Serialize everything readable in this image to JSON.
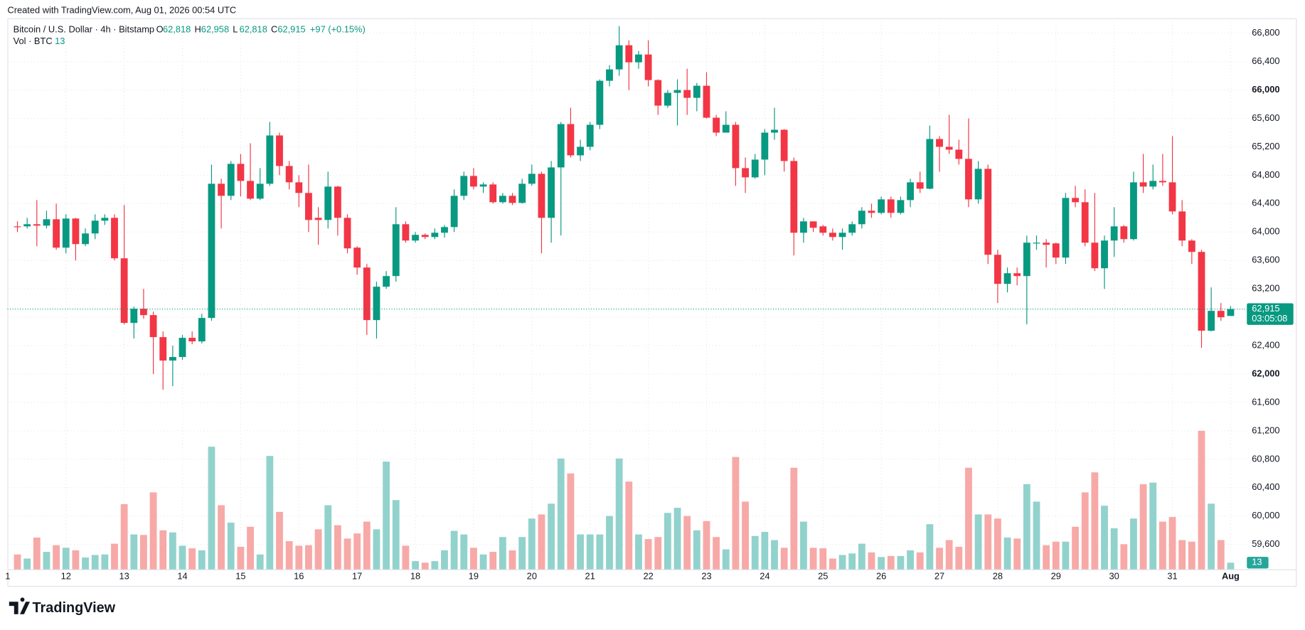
{
  "credit": "Created with TradingView.com, Aug 01, 2026 00:54 UTC",
  "logo_text": "TradingView",
  "chart_data": {
    "type": "candlestick",
    "title": "Bitcoin / U.S. Dollar · 4h · Bitstamp",
    "header": [
      {
        "key": "O",
        "text": "62,818"
      },
      {
        "key": "H",
        "text": "62,958"
      },
      {
        "key": "L",
        "text": "62,818"
      },
      {
        "key": "C",
        "text": "62,915"
      }
    ],
    "change": "+97 (+0.15%)",
    "volume_name": "Vol · BTC",
    "up_color": "#089981",
    "down_color": "#f23645",
    "volume_up_color": "#92d2cc",
    "volume_down_color": "#f7a9a7",
    "open": [
      64080,
      64080,
      64110,
      64090,
      64180,
      63780,
      64190,
      63830,
      63980,
      64160,
      64200,
      63630,
      62720,
      62920,
      62830,
      62520,
      62190,
      62240,
      62510,
      62460,
      62790,
      64680,
      64510,
      64960,
      64720,
      64470,
      64680,
      65360,
      64930,
      64700,
      64550,
      64200,
      64170,
      64640,
      64200,
      63780,
      63500,
      62760,
      63230,
      63380,
      64110,
      63880,
      63960,
      63930,
      63990,
      64070,
      64510,
      64790,
      64640,
      64670,
      64420,
      64510,
      64410,
      64680,
      64820,
      64200,
      64910,
      65520,
      65080,
      65200,
      65510,
      66130,
      66290,
      66630,
      66390,
      66500,
      66140,
      65780,
      65960,
      66000,
      65890,
      66060,
      65610,
      65400,
      65510,
      64900,
      64770,
      65020,
      65400,
      65440,
      65000,
      63990,
      64150,
      64080,
      63990,
      63930,
      63990,
      64110,
      64300,
      64270,
      64460,
      64270,
      64450,
      64700,
      64610,
      65310,
      65200,
      65160,
      65030,
      64460,
      64890,
      63680,
      63270,
      63420,
      63380,
      63840,
      63850,
      63840,
      63640,
      64480,
      64420,
      63850,
      63490,
      63880,
      64080,
      63900,
      64700,
      64640,
      64720,
      64700,
      64290,
      63880,
      63720,
      62610,
      62890,
      62818
    ],
    "high": [
      64150,
      64200,
      64450,
      64300,
      64400,
      64250,
      64200,
      64050,
      64250,
      64250,
      64250,
      64380,
      62950,
      63200,
      62880,
      62600,
      62400,
      62550,
      62600,
      62850,
      64950,
      64750,
      65000,
      65100,
      65250,
      64900,
      65550,
      65400,
      65000,
      64800,
      64950,
      64350,
      64850,
      64650,
      64250,
      63800,
      63550,
      63300,
      63450,
      64350,
      64150,
      64000,
      63980,
      64050,
      64100,
      64600,
      64850,
      64900,
      64700,
      64700,
      64550,
      64550,
      64750,
      64950,
      64850,
      65000,
      65550,
      65750,
      65300,
      65550,
      66150,
      66350,
      66900,
      66700,
      66550,
      66700,
      66150,
      66000,
      66150,
      66300,
      66100,
      66250,
      65650,
      65700,
      65550,
      65050,
      65100,
      65450,
      65750,
      65450,
      65050,
      64200,
      64150,
      64100,
      64050,
      64050,
      64150,
      64350,
      64400,
      64500,
      64500,
      64500,
      64750,
      64850,
      65500,
      65350,
      65650,
      65300,
      65600,
      65000,
      64950,
      63750,
      63500,
      63500,
      63950,
      63950,
      63900,
      63850,
      64550,
      64650,
      64600,
      64550,
      63950,
      64350,
      64100,
      64850,
      65100,
      64950,
      65100,
      65350,
      64450,
      63900,
      63750,
      63220,
      63000,
      62958
    ],
    "low": [
      64000,
      64050,
      63800,
      64050,
      63750,
      63700,
      63600,
      63800,
      63900,
      64100,
      63600,
      62700,
      62500,
      62780,
      62000,
      61780,
      61830,
      62200,
      62420,
      62430,
      62750,
      64050,
      64450,
      64500,
      64450,
      64450,
      64650,
      64800,
      64600,
      64350,
      64000,
      63820,
      64050,
      63950,
      63700,
      63400,
      62550,
      62500,
      63200,
      63300,
      63850,
      63850,
      63900,
      63900,
      63920,
      64000,
      64450,
      64600,
      64550,
      64400,
      64400,
      64380,
      64400,
      64650,
      63700,
      63850,
      63950,
      65050,
      65000,
      65150,
      65450,
      66050,
      66200,
      66000,
      66300,
      66050,
      65650,
      65750,
      65500,
      65650,
      65700,
      65600,
      65350,
      65400,
      64650,
      64550,
      64750,
      64800,
      65300,
      64850,
      63670,
      63850,
      64000,
      63950,
      63880,
      63750,
      63950,
      64050,
      64200,
      64250,
      64200,
      64250,
      64350,
      64550,
      64600,
      64850,
      65100,
      64950,
      64350,
      64400,
      63550,
      63000,
      63150,
      63250,
      62700,
      63750,
      63500,
      63550,
      63550,
      64350,
      63800,
      63450,
      63200,
      63650,
      63850,
      63880,
      64550,
      64600,
      64650,
      64250,
      63800,
      63550,
      62370,
      62600,
      62750,
      62818
    ],
    "close": [
      64070,
      64110,
      64090,
      64180,
      63780,
      64190,
      63830,
      63980,
      64160,
      64200,
      63630,
      62720,
      62920,
      62830,
      62520,
      62190,
      62240,
      62510,
      62460,
      62790,
      64680,
      64510,
      64960,
      64720,
      64470,
      64680,
      65360,
      64930,
      64700,
      64550,
      64170,
      64170,
      64640,
      64200,
      63770,
      63500,
      62760,
      63230,
      63380,
      64110,
      63880,
      63960,
      63930,
      63990,
      64070,
      64510,
      64790,
      64640,
      64670,
      64420,
      64510,
      64410,
      64680,
      64820,
      64200,
      64910,
      65520,
      65080,
      65200,
      65510,
      66130,
      66290,
      66630,
      66390,
      66500,
      66140,
      65780,
      65960,
      66000,
      65890,
      66060,
      65610,
      65400,
      65510,
      64900,
      64770,
      65020,
      65400,
      65440,
      65000,
      63990,
      64150,
      64060,
      63990,
      63930,
      63990,
      64110,
      64300,
      64270,
      64460,
      64270,
      64450,
      64700,
      64610,
      65310,
      65200,
      65160,
      65030,
      64460,
      64890,
      63680,
      63270,
      63420,
      63380,
      63850,
      63850,
      63820,
      63640,
      64480,
      64420,
      63850,
      63490,
      63880,
      64080,
      63900,
      64700,
      64640,
      64720,
      64700,
      64290,
      63880,
      63720,
      62610,
      62890,
      62800,
      62915
    ],
    "volume": [
      29,
      21,
      62,
      34,
      47,
      42,
      37,
      23,
      28,
      29,
      50,
      127,
      68,
      67,
      150,
      76,
      72,
      46,
      41,
      37,
      239,
      125,
      91,
      44,
      83,
      29,
      221,
      112,
      55,
      46,
      47,
      78,
      125,
      86,
      60,
      70,
      93,
      78,
      210,
      135,
      46,
      16,
      13,
      16,
      37,
      75,
      68,
      42,
      29,
      34,
      63,
      37,
      63,
      99,
      107,
      128,
      216,
      187,
      68,
      68,
      68,
      104,
      216,
      171,
      68,
      59,
      63,
      110,
      120,
      104,
      76,
      94,
      63,
      39,
      219,
      132,
      65,
      73,
      57,
      42,
      198,
      93,
      42,
      41,
      21,
      28,
      31,
      50,
      33,
      24,
      26,
      26,
      37,
      33,
      88,
      42,
      57,
      44,
      198,
      107,
      107,
      99,
      62,
      60,
      166,
      132,
      47,
      54,
      54,
      83,
      150,
      189,
      124,
      80,
      49,
      99,
      166,
      169,
      93,
      102,
      57,
      54,
      270,
      128,
      57,
      13
    ],
    "xlim": [
      -1.03,
      126.5
    ],
    "xticks": [
      {
        "value": -1,
        "label": "1"
      },
      {
        "value": 5,
        "label": "12"
      },
      {
        "value": 11,
        "label": "13"
      },
      {
        "value": 17,
        "label": "14"
      },
      {
        "value": 23,
        "label": "15"
      },
      {
        "value": 29,
        "label": "16"
      },
      {
        "value": 35,
        "label": "17"
      },
      {
        "value": 41,
        "label": "18"
      },
      {
        "value": 47,
        "label": "19"
      },
      {
        "value": 53,
        "label": "20"
      },
      {
        "value": 59,
        "label": "21"
      },
      {
        "value": 65,
        "label": "22"
      },
      {
        "value": 71,
        "label": "23"
      },
      {
        "value": 77,
        "label": "24"
      },
      {
        "value": 83,
        "label": "25"
      },
      {
        "value": 89,
        "label": "26"
      },
      {
        "value": 95,
        "label": "27"
      },
      {
        "value": 101,
        "label": "28"
      },
      {
        "value": 107,
        "label": "29"
      },
      {
        "value": 113,
        "label": "30"
      },
      {
        "value": 119,
        "label": "31"
      },
      {
        "value": 125,
        "label": "Aug"
      }
    ],
    "ylim": [
      59250,
      67010
    ],
    "yticks": [
      {
        "value": 59600,
        "label": "59,600"
      },
      {
        "value": 60000,
        "label": "60,000"
      },
      {
        "value": 60400,
        "label": "60,400"
      },
      {
        "value": 60800,
        "label": "60,800"
      },
      {
        "value": 61200,
        "label": "61,200"
      },
      {
        "value": 61600,
        "label": "61,600"
      },
      {
        "value": 62000,
        "label": "62,000"
      },
      {
        "value": 62400,
        "label": "62,400"
      },
      {
        "value": 62800,
        "label": "62,800"
      },
      {
        "value": 63200,
        "label": "63,200"
      },
      {
        "value": 63600,
        "label": "63,600"
      },
      {
        "value": 64000,
        "label": "64,000"
      },
      {
        "value": 64400,
        "label": "64,400"
      },
      {
        "value": 64800,
        "label": "64,800"
      },
      {
        "value": 65200,
        "label": "65,200"
      },
      {
        "value": 65600,
        "label": "65,600"
      },
      {
        "value": 66000,
        "label": "66,000"
      },
      {
        "value": 66400,
        "label": "66,400"
      },
      {
        "value": 66800,
        "label": "66,800"
      }
    ],
    "y2lim": [
      0,
      1074
    ],
    "grid": true,
    "last_price": {
      "value": 62915,
      "label": "62,915",
      "countdown": "03:05:08"
    }
  }
}
